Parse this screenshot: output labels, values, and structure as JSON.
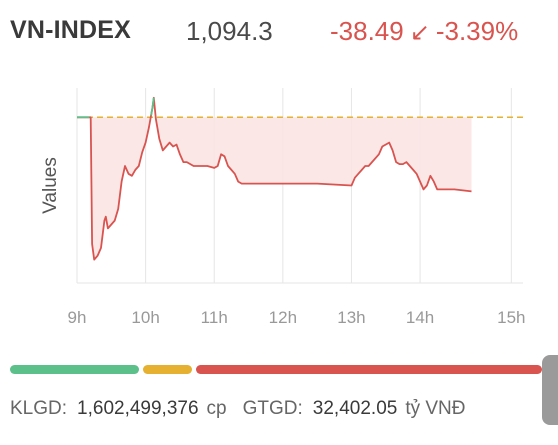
{
  "header": {
    "index_name": "VN-INDEX",
    "index_value": "1,094.3",
    "change_points": "-38.49",
    "change_arrow": "↙",
    "change_percent": "-3.39%"
  },
  "colors": {
    "down": "#d9534f",
    "up": "#5cc08a",
    "reference": "#e6b030",
    "fill": "#fbe3e3"
  },
  "chart_data": {
    "type": "line",
    "title": "",
    "xlabel": "",
    "ylabel": "Values",
    "x_ticks": [
      "9h",
      "10h",
      "11h",
      "12h",
      "13h",
      "14h",
      "15h"
    ],
    "reference_line": "dashed",
    "series": [
      {
        "values_description": "intraday index path",
        "points": [
          [
            9.0,
            0.85
          ],
          [
            9.2,
            0.85
          ],
          [
            9.22,
            0.2
          ],
          [
            9.25,
            0.12
          ],
          [
            9.3,
            0.14
          ],
          [
            9.35,
            0.18
          ],
          [
            9.4,
            0.32
          ],
          [
            9.42,
            0.34
          ],
          [
            9.45,
            0.28
          ],
          [
            9.5,
            0.3
          ],
          [
            9.55,
            0.32
          ],
          [
            9.6,
            0.38
          ],
          [
            9.65,
            0.52
          ],
          [
            9.7,
            0.6
          ],
          [
            9.75,
            0.56
          ],
          [
            9.8,
            0.55
          ],
          [
            9.85,
            0.58
          ],
          [
            9.9,
            0.6
          ],
          [
            9.95,
            0.67
          ],
          [
            10.0,
            0.72
          ],
          [
            10.05,
            0.8
          ],
          [
            10.08,
            0.86
          ],
          [
            10.1,
            0.9
          ],
          [
            10.12,
            0.95
          ],
          [
            10.15,
            0.84
          ],
          [
            10.2,
            0.74
          ],
          [
            10.25,
            0.68
          ],
          [
            10.3,
            0.7
          ],
          [
            10.35,
            0.72
          ],
          [
            10.4,
            0.7
          ],
          [
            10.45,
            0.71
          ],
          [
            10.5,
            0.66
          ],
          [
            10.55,
            0.62
          ],
          [
            10.6,
            0.62
          ],
          [
            10.7,
            0.6
          ],
          [
            10.8,
            0.6
          ],
          [
            10.9,
            0.6
          ],
          [
            11.0,
            0.59
          ],
          [
            11.05,
            0.6
          ],
          [
            11.1,
            0.66
          ],
          [
            11.15,
            0.65
          ],
          [
            11.2,
            0.6
          ],
          [
            11.25,
            0.58
          ],
          [
            11.3,
            0.56
          ],
          [
            11.35,
            0.52
          ],
          [
            11.4,
            0.51
          ],
          [
            11.5,
            0.51
          ],
          [
            12.0,
            0.51
          ],
          [
            12.5,
            0.51
          ],
          [
            13.0,
            0.5
          ],
          [
            13.05,
            0.54
          ],
          [
            13.1,
            0.56
          ],
          [
            13.15,
            0.58
          ],
          [
            13.2,
            0.6
          ],
          [
            13.25,
            0.6
          ],
          [
            13.3,
            0.62
          ],
          [
            13.4,
            0.66
          ],
          [
            13.45,
            0.7
          ],
          [
            13.55,
            0.72
          ],
          [
            13.6,
            0.68
          ],
          [
            13.65,
            0.62
          ],
          [
            13.7,
            0.61
          ],
          [
            13.75,
            0.61
          ],
          [
            13.8,
            0.62
          ],
          [
            13.85,
            0.6
          ],
          [
            13.9,
            0.58
          ],
          [
            13.95,
            0.56
          ],
          [
            14.0,
            0.52
          ],
          [
            14.05,
            0.48
          ],
          [
            14.1,
            0.5
          ],
          [
            14.15,
            0.55
          ],
          [
            14.2,
            0.52
          ],
          [
            14.25,
            0.48
          ],
          [
            14.5,
            0.48
          ],
          [
            14.75,
            0.47
          ]
        ]
      }
    ]
  },
  "range_bar": {
    "up_fraction": 0.25,
    "flat_fraction": 0.1,
    "down_fraction": 0.65
  },
  "footer": {
    "volume_label": "KLGD:",
    "volume_value": "1,602,499,376",
    "volume_unit": "cp",
    "value_label": "GTGD:",
    "value_value": "32,402.05",
    "value_unit": "tỷ VNĐ"
  }
}
